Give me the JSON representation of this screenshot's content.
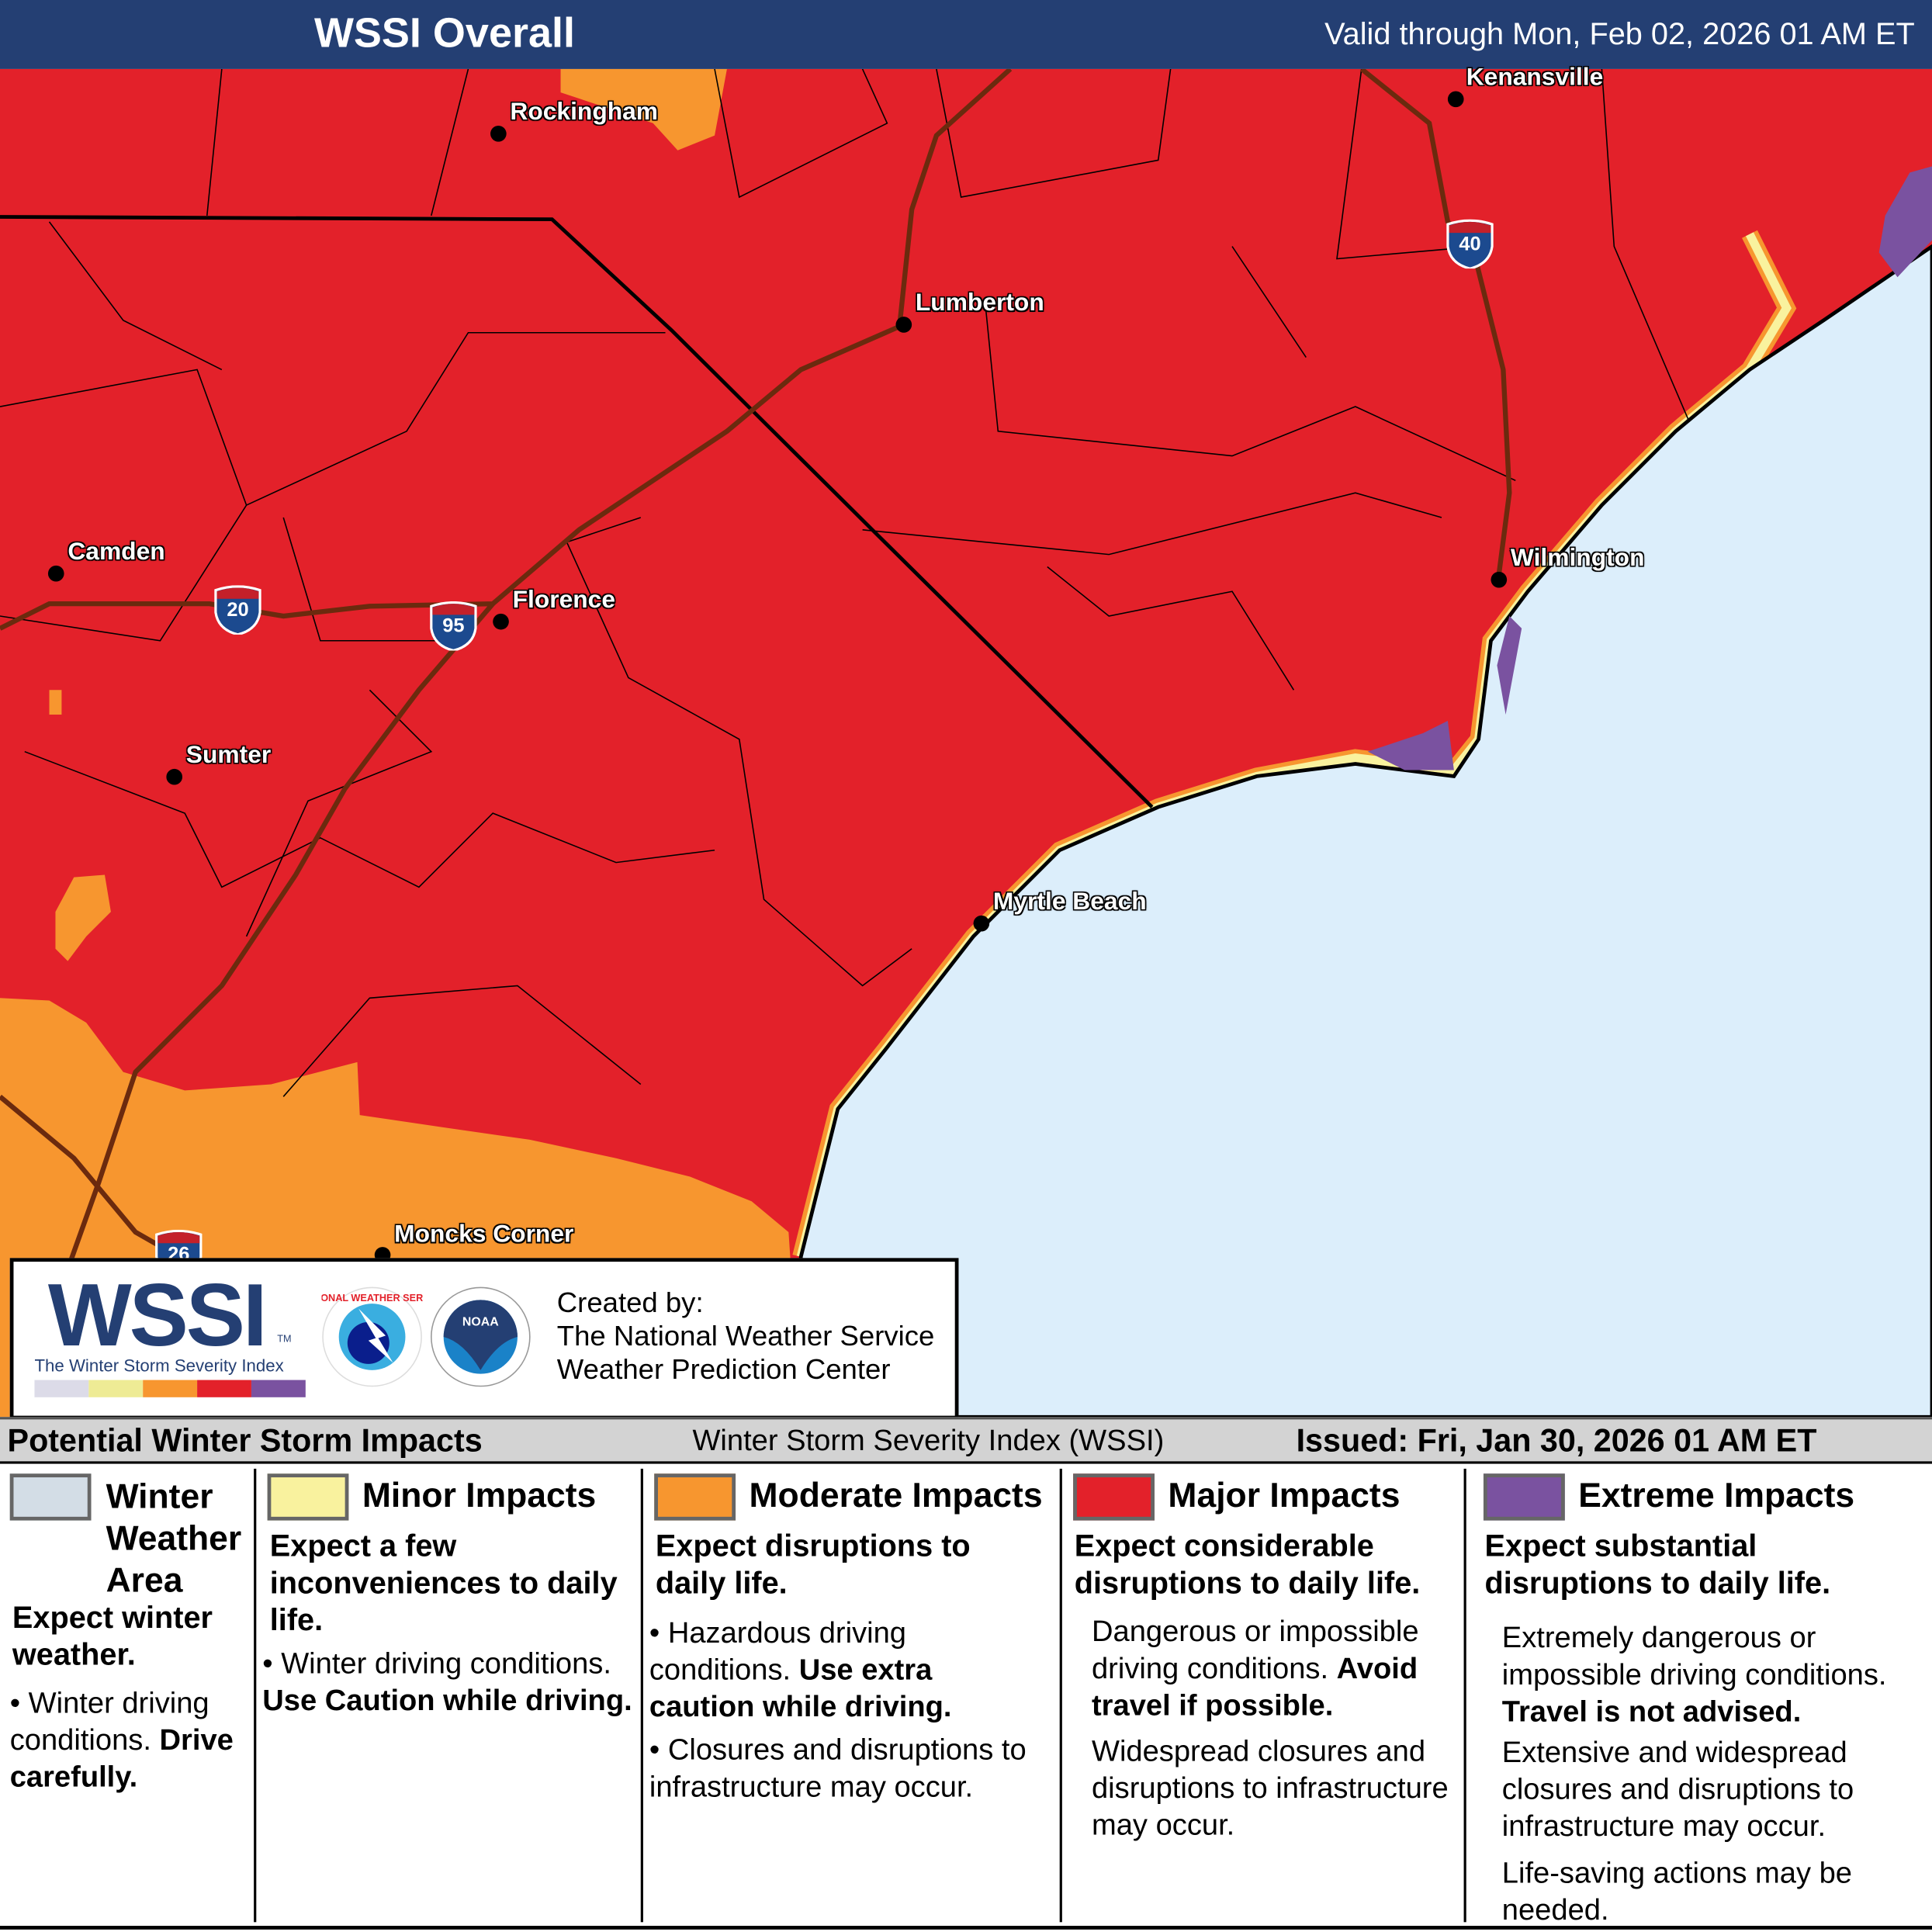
{
  "header": {
    "title": "WSSI Overall",
    "valid": "Valid through Mon, Feb 02, 2026 01 AM ET"
  },
  "colors": {
    "header": "#243f73",
    "ocean": "#dceefb",
    "winter_weather": "#d3dde6",
    "minor": "#f9f29e",
    "moderate": "#f7962f",
    "major": "#e3212a",
    "extreme": "#7a52a0"
  },
  "cities": [
    "Rockingham",
    "Kenansville",
    "Lumberton",
    "Camden",
    "Florence",
    "Sumter",
    "Wilmington",
    "Myrtle Beach",
    "Moncks Corner"
  ],
  "interstates": [
    "40",
    "20",
    "95",
    "26"
  ],
  "logo": {
    "wssi": "WSSI",
    "tm": "TM",
    "subtitle": "The Winter Storm Severity Index",
    "nws_text": "NATIONAL WEATHER SERVICE",
    "noaa_text": "NOAA",
    "created_by": "Created by:",
    "org1": "The National Weather Service",
    "org2": "Weather Prediction Center"
  },
  "legend_bar": {
    "left": "Potential Winter Storm Impacts",
    "center": "Winter Storm Severity Index (WSSI)",
    "right": "Issued: Fri, Jan 30, 2026 01 AM ET"
  },
  "legend": [
    {
      "title": "Winter Weather Area",
      "lead": "Expect winter weather.",
      "b1": "Winter driving conditions.",
      "b1b": "Drive carefully."
    },
    {
      "title": "Minor Impacts",
      "lead": "Expect a few inconveniences to daily life.",
      "b1": "Winter driving conditions.",
      "b1b": "Use Caution while driving."
    },
    {
      "title": "Moderate Impacts",
      "lead": "Expect disruptions to daily life.",
      "b1": "Hazardous driving conditions.",
      "b1b": "Use extra caution while driving.",
      "b2": "Closures and disruptions to infrastructure may occur."
    },
    {
      "title": "Major Impacts",
      "lead": "Expect considerable disruptions to daily life.",
      "b1": "Dangerous or impossible driving conditions.",
      "b1b": "Avoid travel if possible.",
      "b2": "Widespread closures and disruptions to infrastructure may occur."
    },
    {
      "title": "Extreme Impacts",
      "lead": "Expect substantial disruptions to daily life.",
      "b1": "Extremely dangerous or impossible driving conditions.",
      "b1b": "Travel is not advised.",
      "b2": "Extensive and widespread closures and disruptions to infrastructure may occur.",
      "b3": "Life-saving actions may be needed."
    }
  ]
}
